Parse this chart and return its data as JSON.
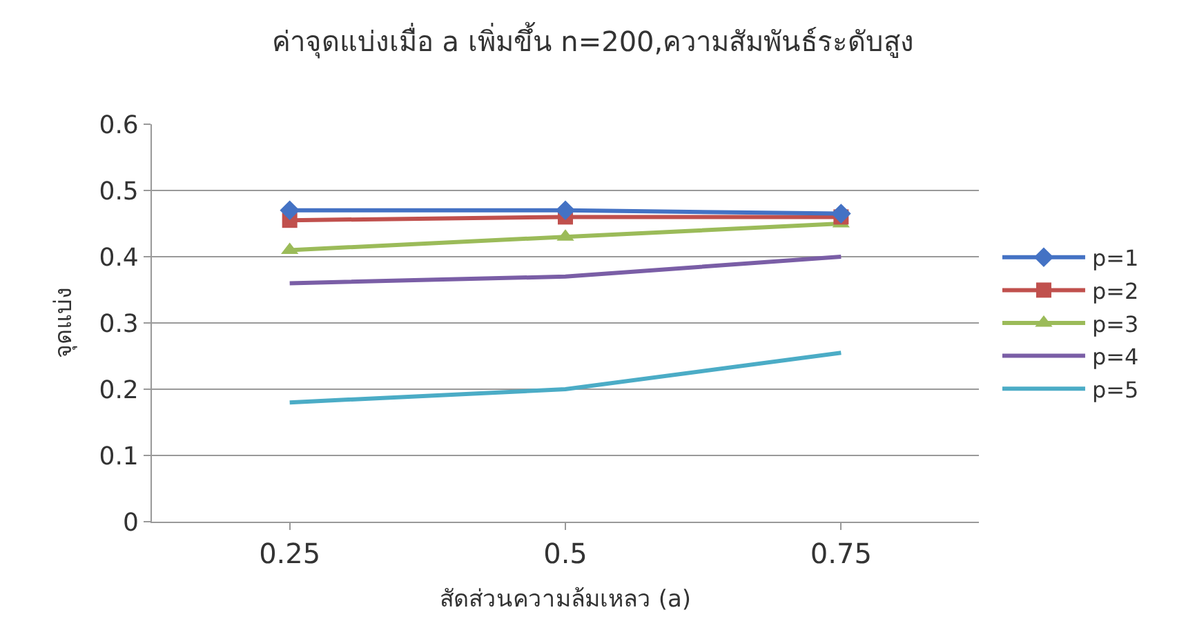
{
  "chart_data": {
    "type": "line",
    "title": "ค่าจุดแบ่งเมื่อ a เพิ่มขึ้น n=200,ความสัมพันธ์ระดับสูง",
    "xlabel": "สัดส่วนความล้มเหลว (a)",
    "ylabel": "จุดแบ่ง",
    "categories": [
      "0.25",
      "0.5",
      "0.75"
    ],
    "series": [
      {
        "name": "p=1",
        "color": "#4472c4",
        "marker": "diamond",
        "values": [
          0.47,
          0.47,
          0.465
        ]
      },
      {
        "name": "p=2",
        "color": "#c0504d",
        "marker": "square",
        "values": [
          0.455,
          0.46,
          0.46
        ]
      },
      {
        "name": "p=3",
        "color": "#9bbb59",
        "marker": "triangle",
        "values": [
          0.41,
          0.43,
          0.45
        ]
      },
      {
        "name": "p=4",
        "color": "#7a5ea6",
        "marker": "none",
        "values": [
          0.36,
          0.37,
          0.4
        ]
      },
      {
        "name": "p=5",
        "color": "#4bacc6",
        "marker": "none",
        "values": [
          0.18,
          0.2,
          0.255
        ]
      }
    ],
    "ylim": [
      0,
      0.6
    ],
    "yticks": [
      0,
      0.1,
      0.2,
      0.3,
      0.4,
      0.5,
      0.6
    ],
    "grid": "y",
    "legend": "right"
  }
}
